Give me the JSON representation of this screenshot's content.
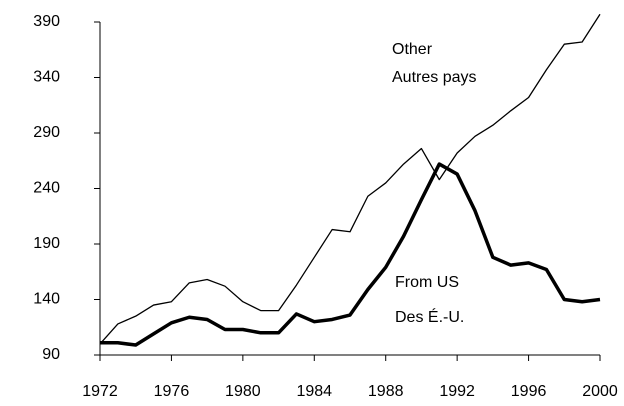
{
  "chart_data": {
    "type": "line",
    "x": [
      1972,
      1973,
      1974,
      1975,
      1976,
      1977,
      1978,
      1979,
      1980,
      1981,
      1982,
      1983,
      1984,
      1985,
      1986,
      1987,
      1988,
      1989,
      1990,
      1991,
      1992,
      1993,
      1994,
      1995,
      1996,
      1997,
      1998,
      1999,
      2000
    ],
    "series": [
      {
        "name": "Other",
        "name_fr": "Autres pays",
        "color": "#000000",
        "values": [
          100,
          118,
          125,
          135,
          138,
          155,
          158,
          152,
          138,
          130,
          130,
          153,
          178,
          203,
          201,
          233,
          245,
          262,
          276,
          248,
          272,
          287,
          297,
          310,
          322,
          347,
          370,
          372,
          397
        ]
      },
      {
        "name": "From US",
        "name_fr": "Des É.-U.",
        "color": "#000000",
        "values": [
          101,
          101,
          99,
          109,
          119,
          124,
          122,
          113,
          113,
          110,
          110,
          127,
          120,
          122,
          126,
          149,
          169,
          197,
          230,
          262,
          253,
          220,
          178,
          171,
          173,
          167,
          140,
          138,
          140
        ]
      }
    ],
    "xlim": [
      1972,
      2000
    ],
    "xticks": [
      1972,
      1976,
      1980,
      1984,
      1988,
      1992,
      1996,
      2000
    ],
    "ylim": [
      90,
      390
    ],
    "yticks": [
      90,
      140,
      190,
      240,
      290,
      340,
      390
    ]
  }
}
